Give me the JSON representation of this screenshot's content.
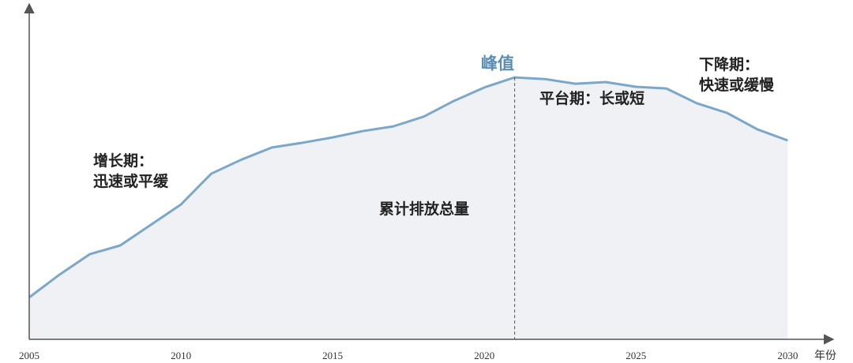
{
  "chart_data": {
    "type": "area",
    "x": [
      2005,
      2006,
      2007,
      2008,
      2009,
      2010,
      2011,
      2012,
      2013,
      2014,
      2015,
      2016,
      2017,
      2018,
      2019,
      2020,
      2021,
      2022,
      2023,
      2024,
      2025,
      2026,
      2027,
      2028,
      2029,
      2030
    ],
    "values": [
      12.5,
      19.3,
      25.4,
      28,
      34.1,
      40.2,
      49.4,
      53.6,
      57.2,
      58.6,
      60.2,
      62.1,
      63.5,
      66.4,
      71.1,
      75.1,
      78.1,
      77.6,
      76.2,
      76.7,
      75.3,
      74.8,
      70.4,
      67.5,
      62.6,
      59.3
    ],
    "color": "#7ba7c8",
    "fill": "#f0f1f4",
    "xlim": [
      2005,
      2031.5
    ],
    "ylim": [
      0,
      100
    ],
    "xticks": [
      2005,
      2010,
      2015,
      2020,
      2025,
      2030
    ],
    "x_label": "年份",
    "peak": {
      "label": "峰值",
      "x": 2021,
      "color": "#5b8db4"
    },
    "annotations": [
      {
        "lines": [
          "增长期：",
          "迅速或平缓"
        ]
      },
      {
        "lines": [
          "累计排放总量"
        ]
      },
      {
        "lines": [
          "平台期：长或短"
        ]
      },
      {
        "lines": [
          "下降期：",
          "快速或缓慢"
        ]
      }
    ]
  }
}
